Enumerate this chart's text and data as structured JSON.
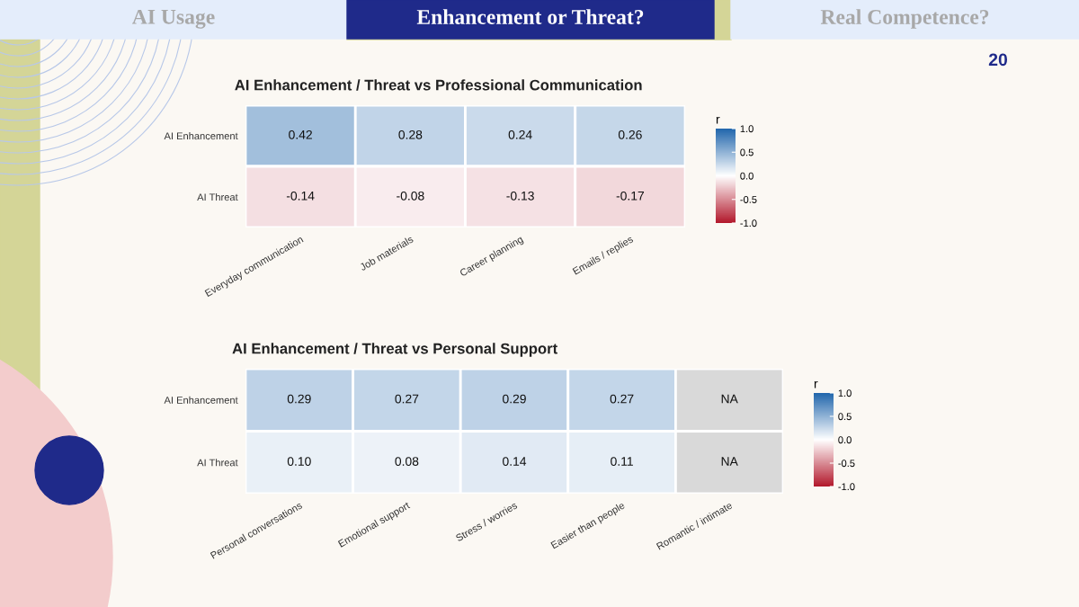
{
  "chart_data": [
    {
      "type": "other",
      "annotations": [
        "AI Usage",
        "Enhancement or Threat?",
        "Real Competence?",
        "20"
      ]
    },
    {
      "type": "heatmap",
      "title": "AI Enhancement / Threat vs Professional Communication",
      "clabel": "r",
      "categories": [
        "Everyday communication",
        "Job materials",
        "Career planning",
        "Emails / replies"
      ],
      "y_categories": [
        "AI Enhancement",
        "AI Threat"
      ],
      "cells": [
        [
          0.42,
          0.28,
          0.24,
          0.26
        ],
        [
          -0.14,
          -0.08,
          -0.13,
          -0.17
        ]
      ],
      "cell_labels": [
        [
          "0.42",
          "0.28",
          "0.24",
          "0.26"
        ],
        [
          "-0.14",
          "-0.08",
          "-0.13",
          "-0.17"
        ]
      ],
      "clim": [
        -1.0,
        1.0
      ],
      "cticks": [
        {
          "value": -1,
          "label": "-1.0"
        },
        {
          "value": -0.5,
          "label": "-0.5"
        },
        {
          "value": 0,
          "label": "0.0"
        },
        {
          "value": 0.5,
          "label": "0.5"
        },
        {
          "value": 1,
          "label": "1.0"
        }
      ]
    },
    {
      "type": "heatmap",
      "title": "AI Enhancement / Threat vs Personal Support",
      "clabel": "r",
      "categories": [
        "Personal conversations",
        "Emotional support",
        "Stress / worries",
        "Easier than people",
        "Romantic / intimate"
      ],
      "y_categories": [
        "AI Enhancement",
        "AI Threat"
      ],
      "cells": [
        [
          0.29,
          0.27,
          0.29,
          0.27,
          null
        ],
        [
          0.1,
          0.08,
          0.14,
          0.11,
          null
        ]
      ],
      "cell_labels": [
        [
          "0.29",
          "0.27",
          "0.29",
          "0.27",
          "NA"
        ],
        [
          "0.10",
          "0.08",
          "0.14",
          "0.11",
          "NA"
        ]
      ],
      "clim": [
        -1.0,
        1.0
      ],
      "cticks": [
        {
          "value": -1,
          "label": "-1.0"
        },
        {
          "value": -0.5,
          "label": "-0.5"
        },
        {
          "value": 0,
          "label": "0.0"
        },
        {
          "value": 0.5,
          "label": "0.5"
        },
        {
          "value": 1,
          "label": "1.0"
        }
      ]
    }
  ]
}
